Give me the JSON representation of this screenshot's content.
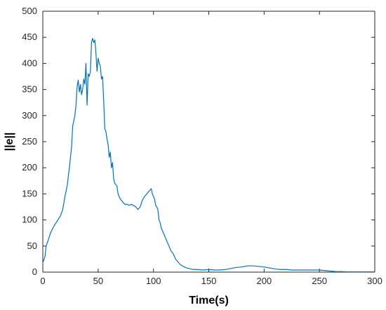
{
  "chart_data": {
    "type": "line",
    "title": "",
    "xlabel": "Time(s)",
    "ylabel": "||e||",
    "xlim": [
      0,
      300
    ],
    "ylim": [
      0,
      500
    ],
    "x_ticks": [
      0,
      50,
      100,
      150,
      200,
      250,
      300
    ],
    "y_ticks": [
      0,
      50,
      100,
      150,
      200,
      250,
      300,
      350,
      400,
      450,
      500
    ],
    "grid": false,
    "series": [
      {
        "color": "#0072BD",
        "points": [
          [
            0,
            18
          ],
          [
            2,
            30
          ],
          [
            3,
            50
          ],
          [
            5,
            62
          ],
          [
            7,
            75
          ],
          [
            10,
            88
          ],
          [
            13,
            98
          ],
          [
            16,
            108
          ],
          [
            18,
            120
          ],
          [
            20,
            145
          ],
          [
            22,
            165
          ],
          [
            24,
            200
          ],
          [
            26,
            240
          ],
          [
            27,
            280
          ],
          [
            28,
            290
          ],
          [
            29,
            300
          ],
          [
            30,
            320
          ],
          [
            31,
            355
          ],
          [
            32,
            368
          ],
          [
            33,
            345
          ],
          [
            34,
            360
          ],
          [
            35,
            340
          ],
          [
            36,
            350
          ],
          [
            37,
            370
          ],
          [
            38,
            360
          ],
          [
            39,
            400
          ],
          [
            40,
            320
          ],
          [
            41,
            380
          ],
          [
            42,
            375
          ],
          [
            43,
            385
          ],
          [
            44,
            440
          ],
          [
            45,
            448
          ],
          [
            46,
            440
          ],
          [
            47,
            445
          ],
          [
            48,
            420
          ],
          [
            49,
            385
          ],
          [
            50,
            410
          ],
          [
            51,
            400
          ],
          [
            52,
            395
          ],
          [
            53,
            370
          ],
          [
            54,
            375
          ],
          [
            55,
            330
          ],
          [
            56,
            275
          ],
          [
            57,
            270
          ],
          [
            58,
            255
          ],
          [
            59,
            245
          ],
          [
            60,
            220
          ],
          [
            61,
            230
          ],
          [
            62,
            200
          ],
          [
            63,
            210
          ],
          [
            64,
            180
          ],
          [
            65,
            170
          ],
          [
            66,
            168
          ],
          [
            67,
            165
          ],
          [
            68,
            150
          ],
          [
            69,
            145
          ],
          [
            70,
            140
          ],
          [
            72,
            135
          ],
          [
            74,
            130
          ],
          [
            76,
            130
          ],
          [
            78,
            128
          ],
          [
            80,
            130
          ],
          [
            82,
            128
          ],
          [
            84,
            125
          ],
          [
            86,
            120
          ],
          [
            88,
            125
          ],
          [
            90,
            138
          ],
          [
            92,
            145
          ],
          [
            94,
            150
          ],
          [
            96,
            155
          ],
          [
            98,
            160
          ],
          [
            99,
            150
          ],
          [
            100,
            145
          ],
          [
            101,
            140
          ],
          [
            102,
            128
          ],
          [
            103,
            125
          ],
          [
            104,
            120
          ],
          [
            105,
            100
          ],
          [
            106,
            95
          ],
          [
            107,
            85
          ],
          [
            108,
            80
          ],
          [
            110,
            70
          ],
          [
            112,
            60
          ],
          [
            114,
            50
          ],
          [
            116,
            40
          ],
          [
            118,
            35
          ],
          [
            120,
            25
          ],
          [
            122,
            20
          ],
          [
            124,
            15
          ],
          [
            126,
            12
          ],
          [
            128,
            10
          ],
          [
            130,
            8
          ],
          [
            132,
            7
          ],
          [
            134,
            6
          ],
          [
            136,
            5
          ],
          [
            140,
            5
          ],
          [
            145,
            4
          ],
          [
            150,
            5
          ],
          [
            155,
            4
          ],
          [
            160,
            4
          ],
          [
            165,
            5
          ],
          [
            170,
            7
          ],
          [
            175,
            9
          ],
          [
            180,
            10
          ],
          [
            185,
            12
          ],
          [
            190,
            12
          ],
          [
            195,
            11
          ],
          [
            200,
            10
          ],
          [
            205,
            8
          ],
          [
            210,
            6
          ],
          [
            215,
            5
          ],
          [
            220,
            5
          ],
          [
            225,
            4
          ],
          [
            230,
            4
          ],
          [
            235,
            4
          ],
          [
            240,
            4
          ],
          [
            245,
            4
          ],
          [
            250,
            4
          ],
          [
            255,
            3
          ],
          [
            260,
            2
          ],
          [
            265,
            1
          ],
          [
            270,
            1
          ],
          [
            275,
            0.5
          ],
          [
            280,
            0.5
          ],
          [
            285,
            0.5
          ],
          [
            290,
            0.5
          ],
          [
            295,
            0.5
          ],
          [
            300,
            0.5
          ]
        ]
      }
    ]
  }
}
